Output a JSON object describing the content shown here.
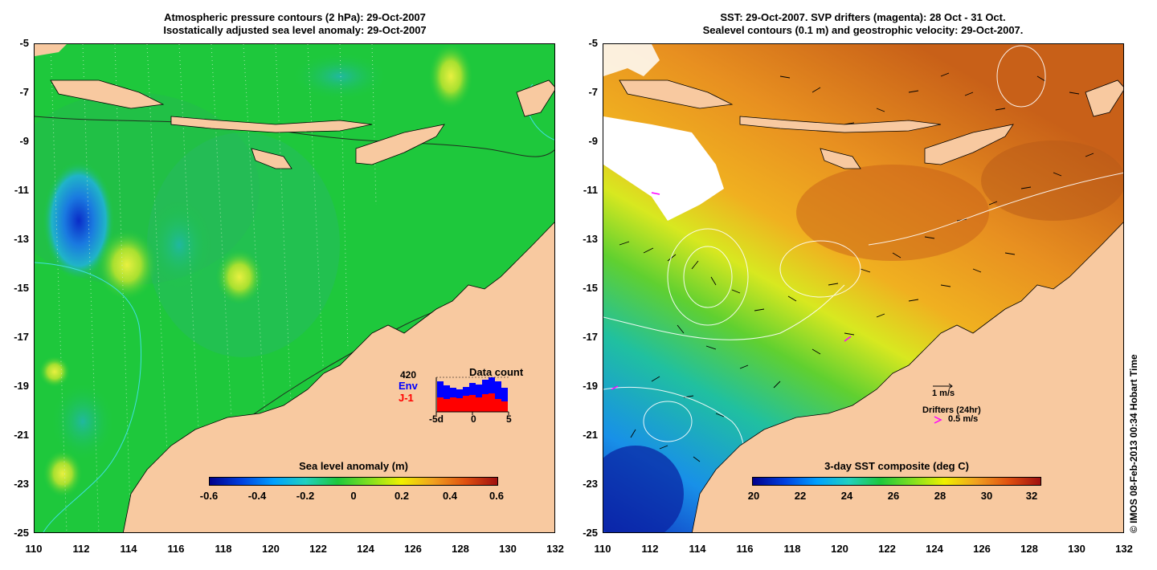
{
  "left_panel": {
    "title_line1": "Atmospheric pressure contours (2 hPa): 29-Oct-2007",
    "title_line2": "Isostatically adjusted sea level anomaly: 29-Oct-2007",
    "colorbar_title": "Sea level anomaly (m)",
    "colorbar_ticks": [
      "-0.6",
      "-0.4",
      "-0.2",
      "0",
      "0.2",
      "0.4",
      "0.6"
    ],
    "inset": {
      "title": "Data count",
      "max_label": "420",
      "env_label": "Env",
      "j1_label": "J-1",
      "x_ticks": [
        "-5d",
        "0",
        "5"
      ]
    }
  },
  "right_panel": {
    "title_line1": "SST: 29-Oct-2007. SVP drifters (magenta): 28 Oct - 31 Oct.",
    "title_line2": "Sealevel contours (0.1 m) and geostrophic velocity: 29-Oct-2007.",
    "colorbar_title": "3-day SST composite (deg C)",
    "colorbar_ticks": [
      "20",
      "22",
      "24",
      "26",
      "28",
      "30",
      "32"
    ],
    "scale_label": "1 m/s",
    "drifter_label": "Drifters (24hr)",
    "drifter_speed": "0.5 m/s"
  },
  "axes": {
    "y_ticks": [
      "-5",
      "-7",
      "-9",
      "-11",
      "-13",
      "-15",
      "-17",
      "-19",
      "-21",
      "-23",
      "-25"
    ],
    "x_ticks": [
      "110",
      "112",
      "114",
      "116",
      "118",
      "120",
      "122",
      "124",
      "126",
      "128",
      "130",
      "132"
    ]
  },
  "credit": "© IMOS 08-Feb-2013 00:34 Hobart Time",
  "colors": {
    "land": "#f8c9a0",
    "sea_green": "#1ec83c",
    "warm_orange": "#e88a1a",
    "magenta": "#ff00ff",
    "env_blue": "#0000ff",
    "j1_red": "#ff0000"
  }
}
